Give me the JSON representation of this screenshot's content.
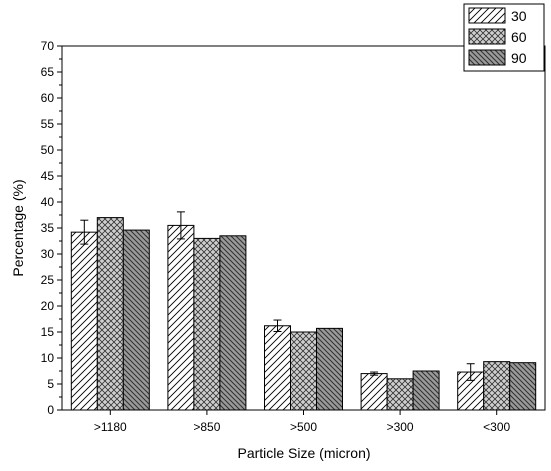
{
  "chart_data": {
    "type": "bar",
    "xlabel": "Particle Size (micron)",
    "ylabel": "Percentage (%)",
    "ylim": [
      0,
      70
    ],
    "yticks": [
      0,
      5,
      10,
      15,
      20,
      25,
      30,
      35,
      40,
      45,
      50,
      55,
      60,
      65,
      70
    ],
    "categories": [
      ">1180",
      ">850",
      ">500",
      ">300",
      "<300"
    ],
    "series": [
      {
        "name": "30",
        "values": [
          34.2,
          35.5,
          16.2,
          7.0,
          7.3
        ],
        "error": [
          2.3,
          2.6,
          1.1,
          0.3,
          1.6
        ],
        "pattern": "diagonal-hatch",
        "color": "#ffffff"
      },
      {
        "name": "60",
        "values": [
          37.0,
          33.0,
          15.0,
          6.0,
          9.3
        ],
        "pattern": "crosshatch",
        "color": "#c8c8c8"
      },
      {
        "name": "90",
        "values": [
          34.6,
          33.5,
          15.7,
          7.5,
          9.1
        ],
        "pattern": "dense-diagonal",
        "color": "#909090"
      }
    ],
    "legend_position": "top-right",
    "grid": false
  }
}
